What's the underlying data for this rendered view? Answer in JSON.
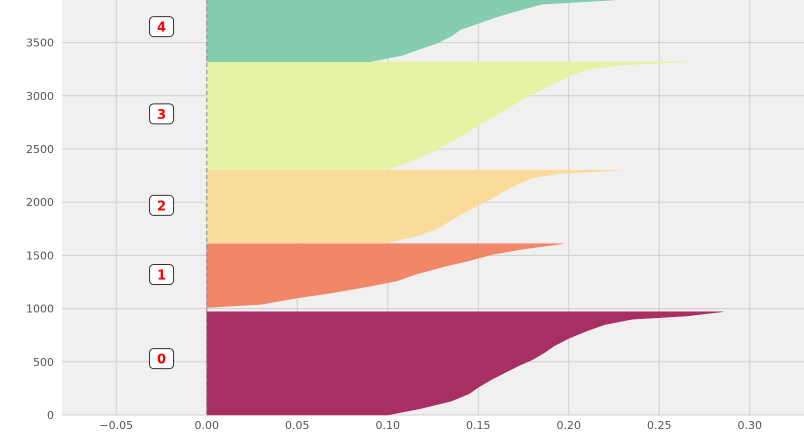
{
  "chart_data": {
    "type": "area",
    "title": "",
    "xlabel": "",
    "ylabel": "",
    "xlim": [
      -0.08,
      0.33
    ],
    "ylim": [
      0,
      3900
    ],
    "xticks": [
      -0.05,
      0.0,
      0.05,
      0.1,
      0.15,
      0.2,
      0.25,
      0.3
    ],
    "xtick_labels": [
      "−0.05",
      "0.00",
      "0.05",
      "0.10",
      "0.15",
      "0.20",
      "0.25",
      "0.30"
    ],
    "yticks": [
      0,
      500,
      1000,
      1500,
      2000,
      2500,
      3000,
      3500
    ],
    "ytick_labels": [
      "0",
      "500",
      "1000",
      "1500",
      "2000",
      "2500",
      "3000",
      "3500"
    ],
    "grid": true,
    "legend": "none",
    "background": "#f0f0f0",
    "series": [
      {
        "label": "0",
        "label_x": -0.025,
        "label_y": 530,
        "color": "#a3245c",
        "y_range": [
          0,
          970
        ],
        "profile": [
          [
            0,
            0.1
          ],
          [
            60,
            0.118
          ],
          [
            130,
            0.135
          ],
          [
            200,
            0.145
          ],
          [
            260,
            0.15
          ],
          [
            330,
            0.157
          ],
          [
            400,
            0.165
          ],
          [
            460,
            0.172
          ],
          [
            520,
            0.18
          ],
          [
            590,
            0.187
          ],
          [
            650,
            0.192
          ],
          [
            720,
            0.2
          ],
          [
            790,
            0.21
          ],
          [
            850,
            0.22
          ],
          [
            900,
            0.235
          ],
          [
            930,
            0.265
          ],
          [
            970,
            0.285
          ]
        ]
      },
      {
        "label": "1",
        "label_x": -0.025,
        "label_y": 1320,
        "color": "#f08060",
        "y_range": [
          1010,
          1610
        ],
        "profile": [
          [
            1010,
            0.0
          ],
          [
            1040,
            0.03
          ],
          [
            1100,
            0.05
          ],
          [
            1150,
            0.07
          ],
          [
            1210,
            0.09
          ],
          [
            1260,
            0.105
          ],
          [
            1320,
            0.115
          ],
          [
            1390,
            0.13
          ],
          [
            1450,
            0.145
          ],
          [
            1510,
            0.158
          ],
          [
            1560,
            0.175
          ],
          [
            1610,
            0.197
          ]
        ]
      },
      {
        "label": "2",
        "label_x": -0.025,
        "label_y": 1970,
        "color": "#fbd994",
        "y_range": [
          1620,
          2300
        ],
        "profile": [
          [
            1620,
            0.1
          ],
          [
            1690,
            0.118
          ],
          [
            1760,
            0.128
          ],
          [
            1830,
            0.135
          ],
          [
            1900,
            0.142
          ],
          [
            1970,
            0.15
          ],
          [
            2040,
            0.158
          ],
          [
            2110,
            0.165
          ],
          [
            2170,
            0.172
          ],
          [
            2230,
            0.18
          ],
          [
            2270,
            0.195
          ],
          [
            2300,
            0.228
          ]
        ]
      },
      {
        "label": "3",
        "label_x": -0.025,
        "label_y": 2830,
        "color": "#e4f2a0",
        "y_range": [
          2310,
          3320
        ],
        "profile": [
          [
            2310,
            0.1
          ],
          [
            2400,
            0.115
          ],
          [
            2500,
            0.128
          ],
          [
            2600,
            0.138
          ],
          [
            2700,
            0.148
          ],
          [
            2800,
            0.158
          ],
          [
            2900,
            0.168
          ],
          [
            3000,
            0.178
          ],
          [
            3100,
            0.19
          ],
          [
            3180,
            0.2
          ],
          [
            3250,
            0.21
          ],
          [
            3290,
            0.23
          ],
          [
            3320,
            0.266
          ]
        ]
      },
      {
        "label": "4",
        "label_x": -0.025,
        "label_y": 3650,
        "color": "#7fc9ad",
        "y_range": [
          3320,
          3900
        ],
        "profile": [
          [
            3320,
            0.09
          ],
          [
            3380,
            0.108
          ],
          [
            3440,
            0.118
          ],
          [
            3500,
            0.128
          ],
          [
            3560,
            0.135
          ],
          [
            3620,
            0.14
          ],
          [
            3680,
            0.15
          ],
          [
            3740,
            0.16
          ],
          [
            3800,
            0.172
          ],
          [
            3860,
            0.185
          ],
          [
            3900,
            0.225
          ]
        ]
      }
    ]
  }
}
